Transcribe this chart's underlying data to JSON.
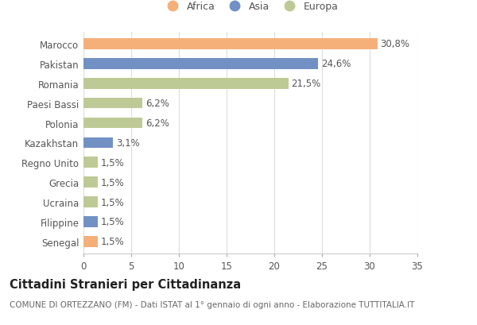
{
  "categories": [
    "Marocco",
    "Pakistan",
    "Romania",
    "Paesi Bassi",
    "Polonia",
    "Kazakhstan",
    "Regno Unito",
    "Grecia",
    "Ucraina",
    "Filippine",
    "Senegal"
  ],
  "values": [
    30.8,
    24.6,
    21.5,
    6.2,
    6.2,
    3.1,
    1.5,
    1.5,
    1.5,
    1.5,
    1.5
  ],
  "labels": [
    "30,8%",
    "24,6%",
    "21,5%",
    "6,2%",
    "6,2%",
    "3,1%",
    "1,5%",
    "1,5%",
    "1,5%",
    "1,5%",
    "1,5%"
  ],
  "colors": [
    "#F5B07A",
    "#7191C4",
    "#BECA96",
    "#BECA96",
    "#BECA96",
    "#7191C4",
    "#BECA96",
    "#BECA96",
    "#BECA96",
    "#7191C4",
    "#F5B07A"
  ],
  "legend_labels": [
    "Africa",
    "Asia",
    "Europa"
  ],
  "legend_colors": [
    "#F5B07A",
    "#7191C4",
    "#BECA96"
  ],
  "xlim": [
    0,
    35
  ],
  "xticks": [
    0,
    5,
    10,
    15,
    20,
    25,
    30,
    35
  ],
  "title": "Cittadini Stranieri per Cittadinanza",
  "subtitle": "COMUNE DI ORTEZZANO (FM) - Dati ISTAT al 1° gennaio di ogni anno - Elaborazione TUTTITALIA.IT",
  "background_color": "#ffffff",
  "bar_height": 0.55,
  "grid_color": "#dddddd",
  "label_fontsize": 8.5,
  "title_fontsize": 10.5,
  "subtitle_fontsize": 7.5,
  "tick_fontsize": 8.5,
  "ytick_fontsize": 8.5
}
